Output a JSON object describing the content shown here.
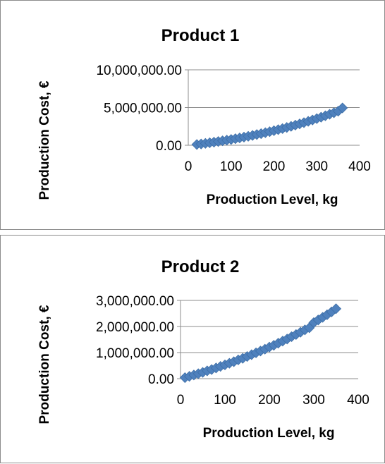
{
  "chart_data": [
    {
      "type": "scatter",
      "title": "Product 1",
      "xlabel": "Production Level, kg",
      "ylabel": "Production Cost, €",
      "xlim": [
        0,
        400
      ],
      "ylim": [
        0,
        10000000
      ],
      "x_ticks": [
        "0",
        "100",
        "200",
        "300",
        "400"
      ],
      "y_ticks": [
        "0.00",
        "5,000,000.00",
        "10,000,000.00"
      ],
      "grid": "horizontal",
      "marker_color": "#4f81bd",
      "series": [
        {
          "x": [
            20,
            30,
            40,
            50,
            60,
            70,
            80,
            90,
            100,
            110,
            120,
            130,
            140,
            150,
            160,
            170,
            180,
            190,
            200,
            210,
            220,
            230,
            240,
            250,
            260,
            270,
            280,
            290,
            300,
            310,
            320,
            330,
            340,
            350,
            360
          ],
          "values": [
            100000,
            170000,
            250000,
            330000,
            410000,
            500000,
            590000,
            680000,
            770000,
            870000,
            970000,
            1080000,
            1190000,
            1300000,
            1420000,
            1540000,
            1670000,
            1800000,
            1930000,
            2070000,
            2210000,
            2360000,
            2510000,
            2670000,
            2830000,
            3000000,
            3170000,
            3350000,
            3530000,
            3720000,
            3910000,
            4110000,
            4310000,
            4520000,
            4950000
          ]
        }
      ]
    },
    {
      "type": "scatter",
      "title": "Product 2",
      "xlabel": "Production Level, kg",
      "ylabel": "Production Cost, €",
      "xlim": [
        0,
        400
      ],
      "ylim": [
        0,
        3000000
      ],
      "x_ticks": [
        "0",
        "100",
        "200",
        "300",
        "400"
      ],
      "y_ticks": [
        "0.00",
        "1,000,000.00",
        "2,000,000.00",
        "3,000,000.00"
      ],
      "grid": "horizontal",
      "marker_color": "#4f81bd",
      "series": [
        {
          "x": [
            10,
            20,
            30,
            40,
            50,
            60,
            70,
            80,
            90,
            100,
            110,
            120,
            130,
            140,
            150,
            160,
            170,
            180,
            190,
            200,
            210,
            220,
            230,
            240,
            250,
            260,
            270,
            280,
            290,
            300,
            310,
            320,
            330,
            340,
            350
          ],
          "values": [
            40000,
            90000,
            140000,
            190000,
            240000,
            300000,
            350000,
            410000,
            470000,
            530000,
            590000,
            650000,
            720000,
            780000,
            850000,
            920000,
            990000,
            1060000,
            1130000,
            1210000,
            1280000,
            1360000,
            1440000,
            1520000,
            1610000,
            1690000,
            1780000,
            1870000,
            1950000,
            2150000,
            2250000,
            2350000,
            2450000,
            2560000,
            2680000
          ]
        }
      ]
    }
  ]
}
